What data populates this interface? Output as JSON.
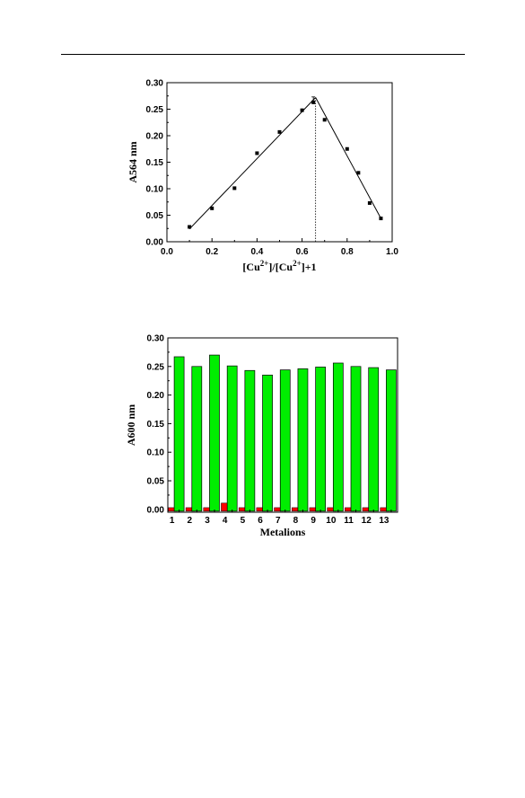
{
  "chart_data": [
    {
      "type": "scatter",
      "xlim": [
        0.0,
        1.0
      ],
      "ylim": [
        0.0,
        0.3
      ],
      "x_ticks": [
        0.0,
        0.2,
        0.4,
        0.6,
        0.8,
        1.0
      ],
      "x_tick_labels": [
        "0.0",
        "0.2",
        "0.4",
        "0.6",
        "0.8",
        "1.0"
      ],
      "y_ticks": [
        0.0,
        0.05,
        0.1,
        0.15,
        0.2,
        0.25,
        0.3
      ],
      "y_tick_labels": [
        "0.00",
        "0.05",
        "0.10",
        "0.15",
        "0.20",
        "0.25",
        "0.30"
      ],
      "ylabel": "A564 nm",
      "xlabel_parts": [
        "[Cu",
        "2+",
        "]/[Cu",
        "2+",
        "]+1"
      ],
      "points": {
        "x": [
          0.1,
          0.2,
          0.3,
          0.4,
          0.5,
          0.6,
          0.65,
          0.7,
          0.8,
          0.85,
          0.9,
          0.95
        ],
        "y": [
          0.028,
          0.063,
          0.101,
          0.167,
          0.207,
          0.248,
          0.263,
          0.23,
          0.175,
          0.13,
          0.073,
          0.044
        ]
      },
      "fit_lines": [
        {
          "x": [
            0.1,
            0.66
          ],
          "y": [
            0.024,
            0.272
          ]
        },
        {
          "x": [
            0.66,
            0.95
          ],
          "y": [
            0.272,
            0.044
          ]
        }
      ],
      "vline_x": 0.66,
      "grid": false
    },
    {
      "type": "bar",
      "categories": [
        "1",
        "2",
        "3",
        "4",
        "5",
        "6",
        "7",
        "8",
        "9",
        "10",
        "11",
        "12",
        "13"
      ],
      "series": [
        {
          "color": "#ff0000",
          "values": [
            0.003,
            0.003,
            0.003,
            0.011,
            0.003,
            0.003,
            0.003,
            0.003,
            0.003,
            0.003,
            0.003,
            0.003,
            0.003
          ]
        },
        {
          "color": "#00ee00",
          "values": [
            0.267,
            0.25,
            0.27,
            0.251,
            0.243,
            0.235,
            0.244,
            0.246,
            0.249,
            0.256,
            0.25,
            0.248,
            0.244
          ]
        }
      ],
      "ylim": [
        -0.005,
        0.3
      ],
      "y_ticks": [
        0.0,
        0.05,
        0.1,
        0.15,
        0.2,
        0.25,
        0.3
      ],
      "y_tick_labels": [
        "0.00",
        "0.05",
        "0.10",
        "0.15",
        "0.20",
        "0.25",
        "0.30"
      ],
      "xlabel": "Metalions",
      "ylabel": "A600 nm",
      "grid": false
    }
  ]
}
